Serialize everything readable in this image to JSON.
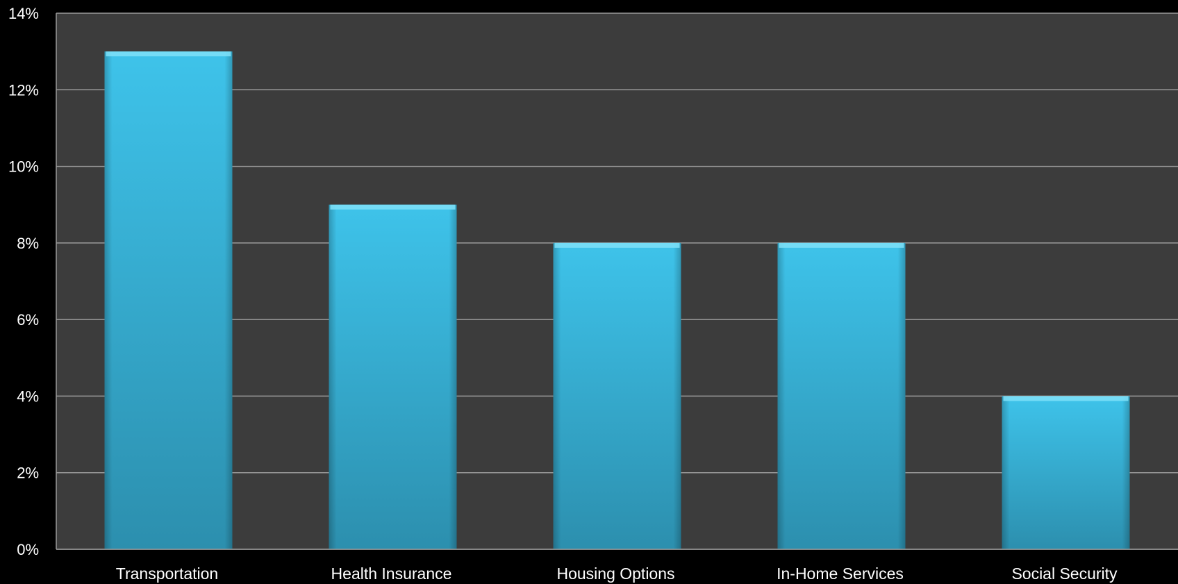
{
  "chart_data": {
    "type": "bar",
    "categories": [
      "Transportation",
      "Health Insurance",
      "Housing Options",
      "In-Home Services",
      "Social Security"
    ],
    "values": [
      13,
      9,
      8,
      8,
      4
    ],
    "title": "",
    "xlabel": "",
    "ylabel": "",
    "ylim": [
      0,
      14
    ],
    "y_ticks": [
      "0%",
      "2%",
      "4%",
      "6%",
      "8%",
      "10%",
      "12%",
      "14%"
    ],
    "y_tick_values": [
      0,
      2,
      4,
      6,
      8,
      10,
      12,
      14
    ],
    "grid": true,
    "legend": "none",
    "colors": {
      "background": "#000000",
      "plot_area": "#3c3c3c",
      "gridline": "#9a9a9a",
      "bar_top": "#3ec3ea",
      "bar_bottom": "#2c8fae",
      "text": "#ffffff"
    }
  }
}
